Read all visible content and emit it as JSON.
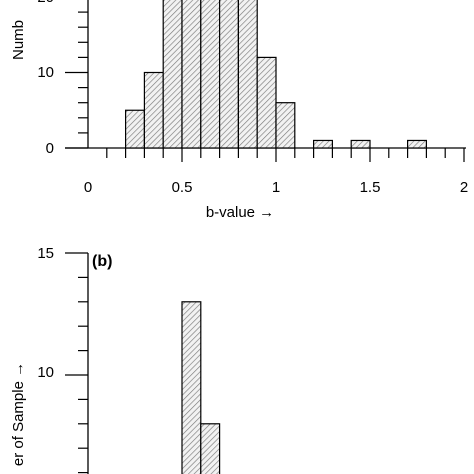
{
  "chart_data": [
    {
      "type": "bar",
      "panel_label": "",
      "xlabel": "b-value →",
      "ylabel": "Numb",
      "x_ticks": [
        "0",
        "0.5",
        "1",
        "1.5",
        "2"
      ],
      "y_ticks": [
        "0",
        "10",
        "20"
      ],
      "xlim": [
        -0.1,
        2.0
      ],
      "ylim": [
        0,
        20
      ],
      "bin_width": 0.1,
      "bins": [
        {
          "start": 0.2,
          "value": 5
        },
        {
          "start": 0.3,
          "value": 10
        },
        {
          "start": 0.4,
          "value": 20
        },
        {
          "start": 0.5,
          "value": 20
        },
        {
          "start": 0.6,
          "value": 20
        },
        {
          "start": 0.7,
          "value": 20
        },
        {
          "start": 0.8,
          "value": 20
        },
        {
          "start": 0.9,
          "value": 12
        },
        {
          "start": 1.0,
          "value": 6
        },
        {
          "start": 1.2,
          "value": 1
        },
        {
          "start": 1.4,
          "value": 1
        },
        {
          "start": 1.7,
          "value": 1
        }
      ],
      "fill_pattern": "hatched-gray"
    },
    {
      "type": "bar",
      "panel_label": "(b)",
      "ylabel": "er of Sample →",
      "y_ticks": [
        "15",
        "10"
      ],
      "ylim": [
        5,
        15
      ],
      "bin_width": 0.1,
      "bins": [
        {
          "start": 0.5,
          "value": 13
        },
        {
          "start": 0.6,
          "value": 8
        }
      ],
      "fill_pattern": "hatched-gray"
    }
  ]
}
